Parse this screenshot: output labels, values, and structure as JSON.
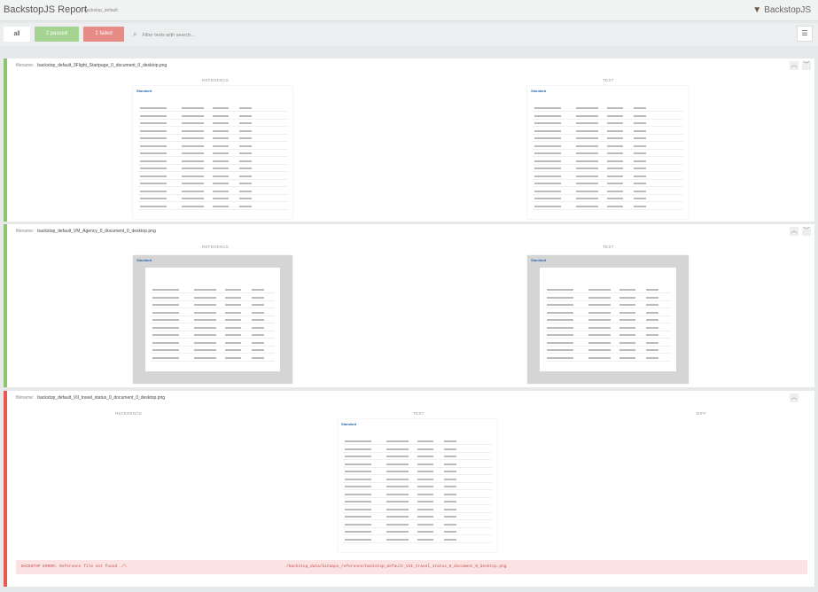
{
  "header": {
    "title": "BackstopJS Report",
    "subtitle": "backstop_default",
    "brand": "BackstopJS"
  },
  "filters": {
    "all": "all",
    "passed": "2 passed",
    "failed": "1 failed",
    "search_placeholder": "Filter tests with search..."
  },
  "colors": {
    "pass": "#8cc56d",
    "fail": "#e8594f"
  },
  "tests": [
    {
      "filename_label": "filename:",
      "filename": "backstop_default_3Flight_Startpage_0_document_0_desktop.png",
      "status": "pass",
      "reference_label": "REFERENCE",
      "test_label": "TEST"
    },
    {
      "filename_label": "filename:",
      "filename": "backstop_default_VM_Agency_0_document_0_desktop.png",
      "status": "pass",
      "reference_label": "REFERENCE",
      "test_label": "TEST"
    },
    {
      "filename_label": "filename:",
      "filename": "backstop_default_VII_travel_status_0_document_0_desktop.png",
      "status": "fail",
      "reference_label": "REFERENCE",
      "test_label": "TEST",
      "diff_label": "DIFF",
      "error": "BACKSTOP ERROR: Reference file not found ./\\",
      "error_path": "/backstop_data/bitmaps_reference/backstop_default_VII_travel_status_0_document_0_desktop.png"
    }
  ],
  "shot_brand": "Standard"
}
